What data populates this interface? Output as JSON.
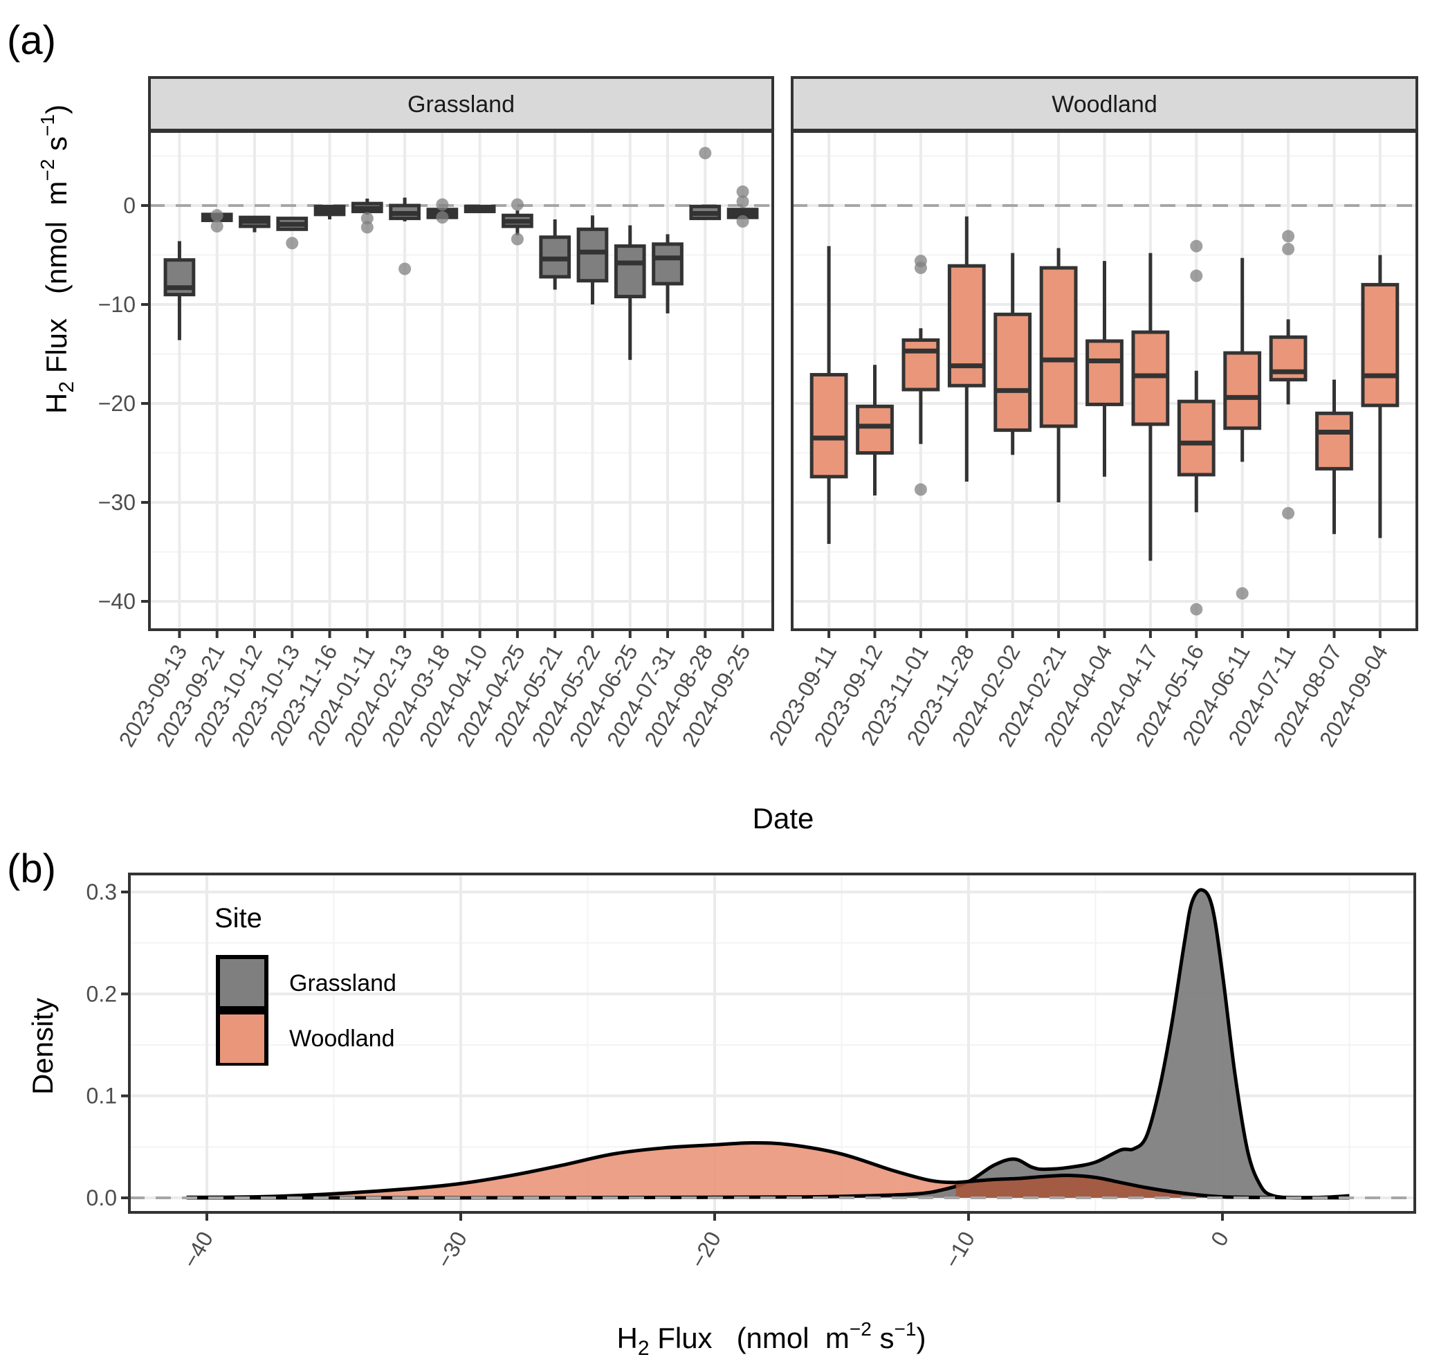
{
  "figure": {
    "panel_labels": [
      "(a)",
      "(b)"
    ]
  },
  "colors": {
    "grassland_fill": "#7f7f7f",
    "woodland_fill": "#e9967a",
    "box_outline": "#333333",
    "outlier": "#808080",
    "strip_bg": "#d9d9d9",
    "grid_major": "#ebebeb",
    "grid_minor": "#f3f3f3",
    "zero_line": "#a6a6a6",
    "overlap_fill": "#a9553a"
  },
  "chart_data": [
    {
      "id": "a",
      "type": "box",
      "panel_label": "(a)",
      "xlabel": "Date",
      "ylabel_main": "H",
      "ylabel_sub": "2",
      "ylabel_rest": " Flux   (nmol  m",
      "ylabel_sup1": "−2",
      "ylabel_mid": " s",
      "ylabel_sup2": "−1",
      "ylabel_end": ")",
      "ylim": [
        -43,
        8
      ],
      "yticks": [
        0,
        -10,
        -20,
        -30,
        -40
      ],
      "ytick_labels": [
        "0",
        "−10",
        "−20",
        "−30",
        "−40"
      ],
      "reference_line": 0,
      "grid": true,
      "facets": [
        {
          "name": "Grassland",
          "fill_key": "grassland_fill",
          "categories": [
            "2023-09-13",
            "2023-09-21",
            "2023-10-12",
            "2023-10-13",
            "2023-11-16",
            "2024-01-11",
            "2024-02-13",
            "2024-03-18",
            "2024-04-10",
            "2024-04-25",
            "2024-05-21",
            "2024-05-22",
            "2024-06-25",
            "2024-07-31",
            "2024-08-28",
            "2024-09-25"
          ],
          "boxes": [
            {
              "lower": -13.6,
              "q1": -9.0,
              "median": -8.3,
              "q3": -5.5,
              "upper": -3.6,
              "outliers": []
            },
            {
              "lower": -1.6,
              "q1": -1.5,
              "median": -1.1,
              "q3": -0.9,
              "upper": -0.8,
              "outliers": [
                -1.0,
                -2.1
              ]
            },
            {
              "lower": -2.7,
              "q1": -2.1,
              "median": -1.6,
              "q3": -1.2,
              "upper": -1.2,
              "outliers": []
            },
            {
              "lower": -2.4,
              "q1": -2.4,
              "median": -1.9,
              "q3": -1.3,
              "upper": -1.3,
              "outliers": [
                -3.8
              ]
            },
            {
              "lower": -1.4,
              "q1": -0.9,
              "median": -0.5,
              "q3": -0.1,
              "upper": -0.1,
              "outliers": []
            },
            {
              "lower": -0.9,
              "q1": -0.6,
              "median": -0.3,
              "q3": 0.2,
              "upper": 0.7,
              "outliers": [
                -1.3,
                -2.2
              ]
            },
            {
              "lower": -1.6,
              "q1": -1.3,
              "median": -0.8,
              "q3": 0.0,
              "upper": 0.8,
              "outliers": [
                -6.4
              ]
            },
            {
              "lower": -1.2,
              "q1": -1.2,
              "median": -0.8,
              "q3": -0.4,
              "upper": -0.3,
              "outliers": [
                0.1,
                -1.2
              ]
            },
            {
              "lower": -0.6,
              "q1": -0.6,
              "median": -0.3,
              "q3": -0.1,
              "upper": -0.1,
              "outliers": []
            },
            {
              "lower": -3.0,
              "q1": -2.1,
              "median": -1.6,
              "q3": -1.0,
              "upper": -0.5,
              "outliers": [
                0.1,
                -3.4
              ]
            },
            {
              "lower": -8.5,
              "q1": -7.2,
              "median": -5.4,
              "q3": -3.2,
              "upper": -1.4,
              "outliers": []
            },
            {
              "lower": -10.0,
              "q1": -7.6,
              "median": -4.7,
              "q3": -2.4,
              "upper": -1.0,
              "outliers": []
            },
            {
              "lower": -15.6,
              "q1": -9.2,
              "median": -5.8,
              "q3": -4.1,
              "upper": -2.0,
              "outliers": []
            },
            {
              "lower": -10.9,
              "q1": -7.9,
              "median": -5.3,
              "q3": -3.9,
              "upper": -2.9,
              "outliers": []
            },
            {
              "lower": -1.4,
              "q1": -1.3,
              "median": -0.8,
              "q3": -0.1,
              "upper": -0.1,
              "outliers": [
                5.3
              ]
            },
            {
              "lower": -1.2,
              "q1": -1.2,
              "median": -0.8,
              "q3": -0.4,
              "upper": -0.4,
              "outliers": [
                1.4,
                0.4,
                -1.6
              ]
            }
          ]
        },
        {
          "name": "Woodland",
          "fill_key": "woodland_fill",
          "categories": [
            "2023-09-11",
            "2023-09-12",
            "2023-11-01",
            "2023-11-28",
            "2024-02-02",
            "2024-02-21",
            "2024-04-04",
            "2024-04-17",
            "2024-05-16",
            "2024-06-11",
            "2024-07-11",
            "2024-08-07",
            "2024-09-04"
          ],
          "boxes": [
            {
              "lower": -34.2,
              "q1": -27.4,
              "median": -23.5,
              "q3": -17.1,
              "upper": -4.1,
              "outliers": []
            },
            {
              "lower": -29.3,
              "q1": -25.0,
              "median": -22.3,
              "q3": -20.3,
              "upper": -16.1,
              "outliers": []
            },
            {
              "lower": -24.1,
              "q1": -18.6,
              "median": -14.7,
              "q3": -13.6,
              "upper": -12.4,
              "outliers": [
                -5.6,
                -6.3,
                -28.7
              ]
            },
            {
              "lower": -27.9,
              "q1": -18.2,
              "median": -16.2,
              "q3": -6.1,
              "upper": -1.1,
              "outliers": []
            },
            {
              "lower": -25.2,
              "q1": -22.7,
              "median": -18.7,
              "q3": -11.0,
              "upper": -4.8,
              "outliers": []
            },
            {
              "lower": -30.0,
              "q1": -22.3,
              "median": -15.6,
              "q3": -6.3,
              "upper": -4.3,
              "outliers": []
            },
            {
              "lower": -27.4,
              "q1": -20.1,
              "median": -15.7,
              "q3": -13.7,
              "upper": -5.6,
              "outliers": []
            },
            {
              "lower": -35.9,
              "q1": -22.1,
              "median": -17.2,
              "q3": -12.8,
              "upper": -4.8,
              "outliers": []
            },
            {
              "lower": -31.0,
              "q1": -27.2,
              "median": -24.0,
              "q3": -19.8,
              "upper": -16.7,
              "outliers": [
                -4.1,
                -7.1,
                -40.8
              ]
            },
            {
              "lower": -25.9,
              "q1": -22.5,
              "median": -19.4,
              "q3": -14.9,
              "upper": -5.3,
              "outliers": [
                -39.2
              ]
            },
            {
              "lower": -20.1,
              "q1": -17.6,
              "median": -16.8,
              "q3": -13.3,
              "upper": -11.5,
              "outliers": [
                -3.1,
                -4.4,
                -31.1
              ]
            },
            {
              "lower": -33.2,
              "q1": -26.6,
              "median": -22.9,
              "q3": -21.0,
              "upper": -17.6,
              "outliers": []
            },
            {
              "lower": -33.6,
              "q1": -20.2,
              "median": -17.2,
              "q3": -8.0,
              "upper": -5.0,
              "outliers": []
            }
          ]
        }
      ]
    },
    {
      "id": "b",
      "type": "area",
      "subtype": "density",
      "panel_label": "(b)",
      "ylabel": "Density",
      "xlabel_main": "H",
      "xlabel_sub": "2",
      "xlabel_rest": " Flux   (nmol  m",
      "xlabel_sup1": "−2",
      "xlabel_mid": " s",
      "xlabel_sup2": "−1",
      "xlabel_end": ")",
      "xlim": [
        -43,
        7
      ],
      "ylim": [
        -0.012,
        0.31
      ],
      "xticks": [
        -40,
        -30,
        -20,
        -10,
        0
      ],
      "xtick_labels": [
        "−40",
        "−30",
        "−20",
        "−10",
        "0"
      ],
      "yticks": [
        0.0,
        0.1,
        0.2,
        0.3
      ],
      "ytick_labels": [
        "0.0",
        "0.1",
        "0.2",
        "0.3"
      ],
      "reference_line": 0,
      "grid": true,
      "legend": {
        "title": "Site",
        "position": "top-left",
        "entries": [
          {
            "label": "Grassland",
            "fill_key": "grassland_fill"
          },
          {
            "label": "Woodland",
            "fill_key": "woodland_fill"
          }
        ]
      },
      "series": [
        {
          "name": "Woodland",
          "fill_key": "woodland_fill",
          "x": [
            -40.8,
            -38,
            -35,
            -32,
            -30,
            -28,
            -26,
            -24,
            -22,
            -20,
            -18.5,
            -17,
            -15,
            -13,
            -11.5,
            -10.5,
            -10,
            -9,
            -8,
            -7,
            -6,
            -5,
            -4,
            -3,
            -2,
            -1,
            0,
            1,
            2,
            3,
            4,
            5
          ],
          "y": [
            0.0005,
            0.001,
            0.004,
            0.009,
            0.014,
            0.022,
            0.032,
            0.043,
            0.049,
            0.052,
            0.054,
            0.052,
            0.043,
            0.027,
            0.017,
            0.015,
            0.016,
            0.018,
            0.019,
            0.021,
            0.022,
            0.02,
            0.015,
            0.01,
            0.006,
            0.003,
            0.001,
            0.0005,
            0.0003,
            0.0002,
            0.0002,
            0.0001
          ]
        },
        {
          "name": "Grassland",
          "fill_key": "grassland_fill",
          "x": [
            -40.8,
            -30,
            -20,
            -16,
            -14,
            -12,
            -11,
            -10,
            -9,
            -8.2,
            -7.5,
            -7,
            -6,
            -5,
            -4,
            -3.5,
            -3,
            -2.5,
            -2,
            -1.5,
            -1.2,
            -0.8,
            -0.4,
            0,
            0.5,
            1,
            1.5,
            2,
            3,
            4,
            5
          ],
          "y": [
            0.0,
            0.0,
            0.0005,
            0.001,
            0.002,
            0.004,
            0.008,
            0.016,
            0.032,
            0.038,
            0.03,
            0.028,
            0.03,
            0.035,
            0.047,
            0.048,
            0.06,
            0.105,
            0.17,
            0.25,
            0.29,
            0.302,
            0.285,
            0.22,
            0.12,
            0.045,
            0.012,
            0.002,
            0.0001,
            0.0005,
            0.002
          ]
        }
      ]
    }
  ]
}
